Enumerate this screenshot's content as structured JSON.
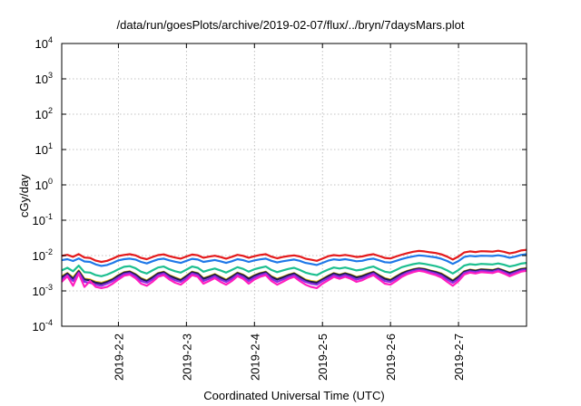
{
  "chart_data": {
    "type": "line",
    "title": "/data/run/goesPlots/archive/2019-02-07/flux/../bryn/7daysMars.plot",
    "xlabel": "Coordinated Universal Time (UTC)",
    "ylabel": "cGy/day",
    "yscale": "log",
    "ylim": [
      0.0001,
      10000
    ],
    "xlim": [
      "2019-02-01T04:00",
      "2019-02-08T00:00"
    ],
    "y_ticks": [
      {
        "exp": -4,
        "label": "10",
        "sup": "-4"
      },
      {
        "exp": -3,
        "label": "10",
        "sup": "-3"
      },
      {
        "exp": -2,
        "label": "10",
        "sup": "-2"
      },
      {
        "exp": -1,
        "label": "10",
        "sup": "-1"
      },
      {
        "exp": 0,
        "label": "10",
        "sup": "0"
      },
      {
        "exp": 1,
        "label": "10",
        "sup": "1"
      },
      {
        "exp": 2,
        "label": "10",
        "sup": "2"
      },
      {
        "exp": 3,
        "label": "10",
        "sup": "3"
      },
      {
        "exp": 4,
        "label": "10",
        "sup": "4"
      }
    ],
    "x_ticks": [
      "2019-2-2",
      "2019-2-3",
      "2019-2-4",
      "2019-2-5",
      "2019-2-6",
      "2019-2-7"
    ],
    "x_tick_dates": [
      "2019-02-02T00:00",
      "2019-02-03T00:00",
      "2019-02-04T00:00",
      "2019-02-05T00:00",
      "2019-02-06T00:00",
      "2019-02-07T00:00"
    ],
    "grid": true,
    "x": [
      "2019-02-01T04:00",
      "2019-02-01T06:00",
      "2019-02-01T08:00",
      "2019-02-01T10:00",
      "2019-02-01T12:00",
      "2019-02-01T14:00",
      "2019-02-01T16:00",
      "2019-02-01T18:00",
      "2019-02-01T20:00",
      "2019-02-01T22:00",
      "2019-02-02T00:00",
      "2019-02-02T02:00",
      "2019-02-02T04:00",
      "2019-02-02T06:00",
      "2019-02-02T08:00",
      "2019-02-02T10:00",
      "2019-02-02T12:00",
      "2019-02-02T14:00",
      "2019-02-02T16:00",
      "2019-02-02T18:00",
      "2019-02-02T20:00",
      "2019-02-02T22:00",
      "2019-02-03T00:00",
      "2019-02-03T02:00",
      "2019-02-03T04:00",
      "2019-02-03T06:00",
      "2019-02-03T08:00",
      "2019-02-03T10:00",
      "2019-02-03T12:00",
      "2019-02-03T14:00",
      "2019-02-03T16:00",
      "2019-02-03T18:00",
      "2019-02-03T20:00",
      "2019-02-03T22:00",
      "2019-02-04T00:00",
      "2019-02-04T02:00",
      "2019-02-04T04:00",
      "2019-02-04T06:00",
      "2019-02-04T08:00",
      "2019-02-04T10:00",
      "2019-02-04T12:00",
      "2019-02-04T14:00",
      "2019-02-04T16:00",
      "2019-02-04T18:00",
      "2019-02-04T20:00",
      "2019-02-04T22:00",
      "2019-02-05T00:00",
      "2019-02-05T02:00",
      "2019-02-05T04:00",
      "2019-02-05T06:00",
      "2019-02-05T08:00",
      "2019-02-05T10:00",
      "2019-02-05T12:00",
      "2019-02-05T14:00",
      "2019-02-05T16:00",
      "2019-02-05T18:00",
      "2019-02-05T20:00",
      "2019-02-05T22:00",
      "2019-02-06T00:00",
      "2019-02-06T02:00",
      "2019-02-06T04:00",
      "2019-02-06T06:00",
      "2019-02-06T08:00",
      "2019-02-06T10:00",
      "2019-02-06T12:00",
      "2019-02-06T14:00",
      "2019-02-06T16:00",
      "2019-02-06T18:00",
      "2019-02-06T20:00",
      "2019-02-06T22:00",
      "2019-02-07T00:00",
      "2019-02-07T02:00",
      "2019-02-07T04:00",
      "2019-02-07T06:00",
      "2019-02-07T08:00",
      "2019-02-07T10:00",
      "2019-02-07T12:00",
      "2019-02-07T14:00",
      "2019-02-07T16:00",
      "2019-02-07T18:00",
      "2019-02-07T20:00",
      "2019-02-07T22:00",
      "2019-02-08T00:00"
    ],
    "series": [
      {
        "color": "#e41a1c",
        "values": [
          0.0098,
          0.0105,
          0.0092,
          0.011,
          0.0088,
          0.0086,
          0.0072,
          0.0066,
          0.0071,
          0.0082,
          0.0097,
          0.0104,
          0.0109,
          0.0101,
          0.0086,
          0.0079,
          0.0091,
          0.0103,
          0.0108,
          0.0096,
          0.0088,
          0.0082,
          0.0094,
          0.0107,
          0.0102,
          0.0087,
          0.0093,
          0.0099,
          0.0091,
          0.0082,
          0.0092,
          0.0105,
          0.0098,
          0.0087,
          0.0096,
          0.0104,
          0.0109,
          0.0093,
          0.0084,
          0.0091,
          0.0097,
          0.0101,
          0.0094,
          0.0082,
          0.0076,
          0.0071,
          0.0082,
          0.0096,
          0.0103,
          0.0099,
          0.0104,
          0.0098,
          0.0091,
          0.0094,
          0.0103,
          0.0109,
          0.0097,
          0.0086,
          0.0083,
          0.0094,
          0.0106,
          0.0117,
          0.0128,
          0.0135,
          0.0131,
          0.0124,
          0.0118,
          0.0108,
          0.0093,
          0.0077,
          0.0094,
          0.0122,
          0.0131,
          0.0126,
          0.0133,
          0.0131,
          0.0129,
          0.0137,
          0.0128,
          0.0115,
          0.0124,
          0.0139,
          0.0145
        ]
      },
      {
        "color": "#1f78e8",
        "values": [
          0.0074,
          0.0079,
          0.007,
          0.0083,
          0.0068,
          0.0066,
          0.0056,
          0.0051,
          0.0054,
          0.0062,
          0.0073,
          0.0079,
          0.0082,
          0.0077,
          0.0066,
          0.006,
          0.0069,
          0.0078,
          0.0082,
          0.0073,
          0.0067,
          0.0062,
          0.0071,
          0.0081,
          0.0077,
          0.0066,
          0.007,
          0.0075,
          0.0069,
          0.0062,
          0.0069,
          0.0079,
          0.0074,
          0.0066,
          0.0073,
          0.0078,
          0.0082,
          0.0071,
          0.0064,
          0.0069,
          0.0073,
          0.0077,
          0.0071,
          0.0062,
          0.0058,
          0.0054,
          0.0062,
          0.0072,
          0.0078,
          0.0075,
          0.0079,
          0.0074,
          0.0069,
          0.0071,
          0.0078,
          0.0082,
          0.0073,
          0.0065,
          0.0063,
          0.0071,
          0.008,
          0.0088,
          0.0095,
          0.0101,
          0.0098,
          0.0093,
          0.0089,
          0.0081,
          0.007,
          0.0058,
          0.007,
          0.0091,
          0.0098,
          0.0095,
          0.0099,
          0.0098,
          0.0097,
          0.0102,
          0.0096,
          0.0087,
          0.0093,
          0.0104,
          0.0109
        ]
      },
      {
        "color": "#1dbf8f",
        "values": [
          0.0038,
          0.0045,
          0.0036,
          0.0052,
          0.0034,
          0.0033,
          0.0028,
          0.0026,
          0.0029,
          0.0034,
          0.0041,
          0.0048,
          0.005,
          0.0044,
          0.0035,
          0.0031,
          0.0038,
          0.0046,
          0.0049,
          0.0041,
          0.0036,
          0.0033,
          0.004,
          0.0049,
          0.0045,
          0.0035,
          0.0039,
          0.0043,
          0.0038,
          0.0033,
          0.0039,
          0.0047,
          0.0042,
          0.0035,
          0.0041,
          0.0045,
          0.0049,
          0.0039,
          0.0034,
          0.0038,
          0.0042,
          0.0045,
          0.0039,
          0.0033,
          0.003,
          0.0028,
          0.0034,
          0.004,
          0.0046,
          0.0043,
          0.0046,
          0.0042,
          0.0038,
          0.004,
          0.0045,
          0.0049,
          0.0041,
          0.0035,
          0.0033,
          0.0039,
          0.0047,
          0.0052,
          0.0057,
          0.0061,
          0.0058,
          0.0054,
          0.005,
          0.0045,
          0.0038,
          0.0031,
          0.0039,
          0.0052,
          0.0057,
          0.0055,
          0.0058,
          0.0057,
          0.0056,
          0.006,
          0.0055,
          0.0049,
          0.0053,
          0.0059,
          0.0062
        ]
      },
      {
        "color": "#e3c21b",
        "values": [
          0.0026,
          0.0032,
          0.0024,
          0.0038,
          0.0022,
          0.0021,
          0.0018,
          0.0017,
          0.0019,
          0.0022,
          0.0028,
          0.0034,
          0.0036,
          0.003,
          0.0023,
          0.002,
          0.0025,
          0.0032,
          0.0035,
          0.0028,
          0.0024,
          0.0021,
          0.0027,
          0.0035,
          0.0032,
          0.0023,
          0.0026,
          0.003,
          0.0025,
          0.0021,
          0.0026,
          0.0033,
          0.0029,
          0.0023,
          0.0028,
          0.0032,
          0.0035,
          0.0026,
          0.0022,
          0.0025,
          0.0029,
          0.0032,
          0.0026,
          0.0021,
          0.0019,
          0.0018,
          0.0022,
          0.0027,
          0.0032,
          0.0029,
          0.0032,
          0.0029,
          0.0025,
          0.0027,
          0.0031,
          0.0035,
          0.0028,
          0.0023,
          0.0021,
          0.0026,
          0.0032,
          0.0037,
          0.0041,
          0.0044,
          0.0042,
          0.0038,
          0.0035,
          0.0031,
          0.0025,
          0.002,
          0.0026,
          0.0036,
          0.004,
          0.0038,
          0.0041,
          0.004,
          0.0039,
          0.0043,
          0.0038,
          0.0033,
          0.0037,
          0.0042,
          0.0044
        ]
      },
      {
        "color": "#1f1a4d",
        "values": [
          0.0024,
          0.0031,
          0.0022,
          0.0036,
          0.0021,
          0.002,
          0.0017,
          0.0016,
          0.0018,
          0.0021,
          0.0027,
          0.0033,
          0.0035,
          0.0029,
          0.0022,
          0.0019,
          0.0024,
          0.0031,
          0.0034,
          0.0027,
          0.0023,
          0.002,
          0.0026,
          0.0034,
          0.0031,
          0.0022,
          0.0025,
          0.0029,
          0.0024,
          0.002,
          0.0025,
          0.0032,
          0.0028,
          0.0022,
          0.0027,
          0.0031,
          0.0034,
          0.0025,
          0.0021,
          0.0024,
          0.0028,
          0.0031,
          0.0025,
          0.002,
          0.0018,
          0.0017,
          0.0021,
          0.0026,
          0.0031,
          0.0028,
          0.0031,
          0.0028,
          0.0024,
          0.0026,
          0.003,
          0.0034,
          0.0027,
          0.0022,
          0.002,
          0.0025,
          0.0031,
          0.0036,
          0.004,
          0.0043,
          0.0041,
          0.0037,
          0.0034,
          0.003,
          0.0024,
          0.0019,
          0.0025,
          0.0035,
          0.0039,
          0.0037,
          0.004,
          0.0039,
          0.0038,
          0.0042,
          0.0037,
          0.0032,
          0.0036,
          0.0041,
          0.0043
        ]
      },
      {
        "color": "#8a2be2",
        "values": [
          0.0021,
          0.0028,
          0.0019,
          0.0033,
          0.0018,
          0.0017,
          0.0015,
          0.0014,
          0.0016,
          0.0019,
          0.0024,
          0.003,
          0.0032,
          0.0026,
          0.0019,
          0.0017,
          0.0021,
          0.0028,
          0.0031,
          0.0024,
          0.002,
          0.0018,
          0.0023,
          0.0031,
          0.0028,
          0.0019,
          0.0022,
          0.0026,
          0.0021,
          0.0018,
          0.0022,
          0.0029,
          0.0025,
          0.0019,
          0.0024,
          0.0028,
          0.0031,
          0.0022,
          0.0018,
          0.0021,
          0.0025,
          0.0028,
          0.0022,
          0.0018,
          0.0016,
          0.0015,
          0.0019,
          0.0023,
          0.0028,
          0.0025,
          0.0028,
          0.0025,
          0.0021,
          0.0023,
          0.0027,
          0.0031,
          0.0024,
          0.0019,
          0.0018,
          0.0022,
          0.0028,
          0.0033,
          0.0037,
          0.004,
          0.0038,
          0.0034,
          0.0031,
          0.0027,
          0.0021,
          0.0017,
          0.0022,
          0.0032,
          0.0036,
          0.0034,
          0.0037,
          0.0036,
          0.0035,
          0.0039,
          0.0034,
          0.0029,
          0.0033,
          0.0038,
          0.004
        ]
      },
      {
        "color": "#ff1fbf",
        "values": [
          0.0018,
          0.0026,
          0.0014,
          0.0031,
          0.0013,
          0.0019,
          0.0013,
          0.0012,
          0.0013,
          0.0016,
          0.0021,
          0.0027,
          0.0029,
          0.0023,
          0.0016,
          0.0014,
          0.0018,
          0.0025,
          0.0028,
          0.0021,
          0.0017,
          0.0015,
          0.002,
          0.0028,
          0.0025,
          0.0016,
          0.0019,
          0.0023,
          0.0018,
          0.0015,
          0.0019,
          0.0026,
          0.0022,
          0.0016,
          0.0021,
          0.0025,
          0.0028,
          0.0019,
          0.0015,
          0.0018,
          0.0022,
          0.0025,
          0.0019,
          0.0015,
          0.0013,
          0.0012,
          0.0016,
          0.002,
          0.0025,
          0.0022,
          0.0025,
          0.0022,
          0.0018,
          0.002,
          0.0024,
          0.0028,
          0.0021,
          0.0016,
          0.0015,
          0.0019,
          0.0025,
          0.003,
          0.0034,
          0.0037,
          0.0035,
          0.0031,
          0.0028,
          0.0024,
          0.0018,
          0.0014,
          0.0019,
          0.0029,
          0.0033,
          0.0031,
          0.0034,
          0.0033,
          0.0032,
          0.0036,
          0.0031,
          0.0026,
          0.003,
          0.0035,
          0.0037
        ]
      }
    ]
  }
}
